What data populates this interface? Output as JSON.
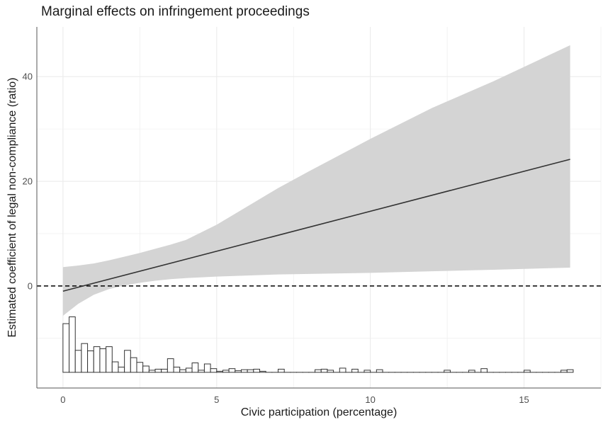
{
  "chart_data": {
    "type": "line",
    "title": "Marginal effects on infringement proceedings",
    "xlabel": "Civic participation (percentage)",
    "ylabel": "Estimated coefficient of legal non-compliance (ratio)",
    "xlim": [
      -0.85,
      17.5
    ],
    "ylim": [
      -19.5,
      49.5
    ],
    "x_ticks": [
      0,
      5,
      10,
      15
    ],
    "x_tick_labels": [
      "0",
      "5",
      "10",
      "15"
    ],
    "y_ticks": [
      0,
      20,
      40
    ],
    "y_tick_labels": [
      "0",
      "20",
      "40"
    ],
    "grid": true,
    "reference_line": {
      "y": 0,
      "style": "dashed"
    },
    "series": [
      {
        "type": "line",
        "x": [
          0,
          16.5
        ],
        "y": [
          -1.0,
          24.2
        ]
      },
      {
        "type": "ribbon",
        "x": [
          0,
          0.5,
          1,
          1.5,
          2,
          2.5,
          3,
          3.5,
          4,
          5,
          6,
          7,
          8,
          10,
          12,
          14,
          16.5
        ],
        "lower": [
          -5.7,
          -3.4,
          -1.7,
          -0.6,
          0.1,
          0.6,
          1.0,
          1.3,
          1.5,
          1.8,
          2.0,
          2.2,
          2.3,
          2.5,
          2.8,
          3.1,
          3.5
        ],
        "upper": [
          3.6,
          3.9,
          4.3,
          4.9,
          5.6,
          6.3,
          7.1,
          7.9,
          8.8,
          11.7,
          15.2,
          18.7,
          21.9,
          28.1,
          34.0,
          39.1,
          46.0
        ]
      },
      {
        "type": "histogram",
        "baseline": -16.5,
        "bin_width": 0.2,
        "bin_starts": [
          0,
          0.2,
          0.4,
          0.6,
          0.8,
          1.0,
          1.2,
          1.4,
          1.6,
          1.8,
          2.0,
          2.2,
          2.4,
          2.6,
          2.8,
          3.0,
          3.2,
          3.4,
          3.6,
          3.8,
          4.0,
          4.2,
          4.4,
          4.6,
          4.8,
          5.0,
          5.2,
          5.4,
          5.6,
          5.8,
          6.0,
          6.2,
          6.4,
          6.6,
          6.8,
          7.0,
          7.2,
          7.4,
          7.6,
          7.8,
          8.0,
          8.2,
          8.4,
          8.6,
          8.8,
          9.0,
          9.2,
          9.4,
          9.6,
          9.8,
          10.0,
          10.2,
          10.4,
          10.6,
          10.8,
          11.0,
          11.2,
          11.4,
          11.6,
          11.8,
          12.0,
          12.2,
          12.4,
          12.6,
          12.8,
          13.0,
          13.2,
          13.4,
          13.6,
          13.8,
          14.0,
          14.2,
          14.4,
          14.6,
          14.8,
          15.0,
          15.2,
          15.4,
          15.6,
          15.8,
          16.0,
          16.2,
          16.4
        ],
        "values": [
          -7.2,
          -5.9,
          -12.3,
          -11.0,
          -12.4,
          -11.6,
          -12.0,
          -11.6,
          -14.5,
          -15.5,
          -12.3,
          -13.7,
          -14.6,
          -15.3,
          -16.1,
          -15.9,
          -15.9,
          -13.9,
          -15.5,
          -16.0,
          -15.7,
          -14.7,
          -16.1,
          -14.9,
          -15.8,
          -16.3,
          -16.1,
          -15.8,
          -16.2,
          -16.0,
          -16.0,
          -15.9,
          -16.3,
          -16.5,
          -16.5,
          -15.9,
          -16.5,
          -16.5,
          -16.5,
          -16.5,
          -16.5,
          -16.0,
          -15.9,
          -16.1,
          -16.5,
          -15.7,
          -16.5,
          -15.9,
          -16.5,
          -16.1,
          -16.5,
          -16.0,
          -16.5,
          -16.5,
          -16.5,
          -16.5,
          -16.5,
          -16.5,
          -16.5,
          -16.5,
          -16.5,
          -16.5,
          -16.1,
          -16.5,
          -16.5,
          -16.5,
          -16.1,
          -16.5,
          -15.8,
          -16.5,
          -16.5,
          -16.5,
          -16.5,
          -16.5,
          -16.5,
          -16.1,
          -16.5,
          -16.5,
          -16.5,
          -16.5,
          -16.5,
          -16.1,
          -16.0
        ]
      }
    ],
    "colors": {
      "ribbon": "#d4d4d4",
      "line": "#333333",
      "grid": "#ebebeb",
      "axis": "#555555",
      "hist_fill": "#ffffff",
      "hist_stroke": "#333333"
    }
  }
}
